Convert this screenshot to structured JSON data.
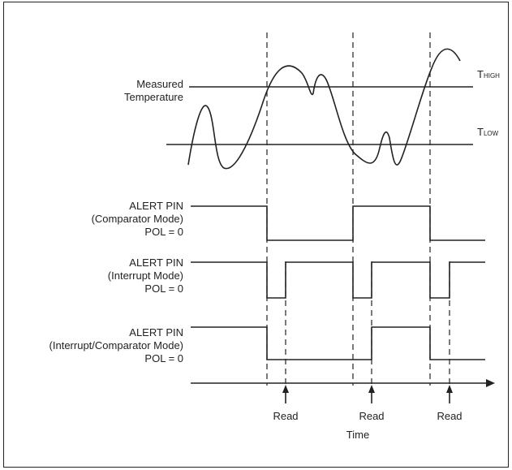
{
  "labels": {
    "measured_temperature": [
      "Measured",
      "Temperature"
    ],
    "t_high_main": "T",
    "t_high_sub": "HIGH",
    "t_low_main": "T",
    "t_low_sub": "LOW",
    "comparator": [
      "ALERT PIN",
      "(Comparator Mode)",
      "POL = 0"
    ],
    "interrupt": [
      "ALERT PIN",
      "(Interrupt Mode)",
      "POL = 0"
    ],
    "int_comp": [
      "ALERT PIN",
      "(Interrupt/Comparator Mode)",
      "POL = 0"
    ],
    "read": [
      "Read",
      "Read",
      "Read"
    ],
    "time": "Time"
  },
  "colors": {
    "line": "#222222"
  }
}
